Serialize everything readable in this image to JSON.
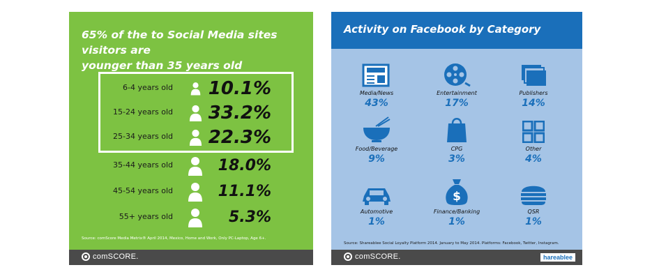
{
  "colors": {
    "left_bg": "#7dc242",
    "right_bg": "#a5c4e6",
    "right_header": "#1a6fba",
    "footer": "#4a4a4a",
    "accent_blue": "#1a6fba"
  },
  "left": {
    "title_line1": "65% of the to Social Media sites visitors are",
    "title_line2": "younger than 35 years old",
    "source": "Source: comScore Media Metrix® April 2014, Mexico, Home and Work, Only PC-Laptop, Age 6+.",
    "brand": "comSCORE."
  },
  "right": {
    "title": "Activity on Facebook by Category",
    "source": "Source: Shareablee Social Loyalty Platform 2014. January to May 2014. Platforms: Facebook, Twitter, Instagram.",
    "brand": "comSCORE.",
    "partner": "hareablee"
  },
  "chart_data": [
    {
      "type": "table",
      "title": "65% of the to Social Media sites visitors are younger than 35 years old",
      "categories": [
        "6-4 years old",
        "15-24 years old",
        "25-34 years old",
        "35-44 years old",
        "45-54 years old",
        "55+ years old"
      ],
      "values": [
        10.1,
        33.2,
        22.3,
        18.0,
        11.1,
        5.3
      ],
      "labels": [
        "10.1%",
        "33.2%",
        "22.3%",
        "18.0%",
        "11.1%",
        "5.3%"
      ],
      "highlighted": [
        "6-4 years old",
        "15-24 years old",
        "25-34 years old"
      ]
    },
    {
      "type": "table",
      "title": "Activity on Facebook by Category",
      "categories": [
        "Media/News",
        "Entertainment",
        "Publishers",
        "Food/Beverage",
        "CPG",
        "Other",
        "Automotive",
        "Finance/Banking",
        "QSR"
      ],
      "values": [
        43,
        17,
        14,
        9,
        3,
        4,
        1,
        1,
        1
      ],
      "labels": [
        "43%",
        "17%",
        "14%",
        "9%",
        "3%",
        "4%",
        "1%",
        "1%",
        "1%"
      ],
      "icons": [
        "newspaper-icon",
        "film-reel-icon",
        "stacked-pages-icon",
        "bowl-chopsticks-icon",
        "shopping-bag-icon",
        "grid-icon",
        "car-icon",
        "money-bag-icon",
        "burger-icon"
      ]
    }
  ]
}
